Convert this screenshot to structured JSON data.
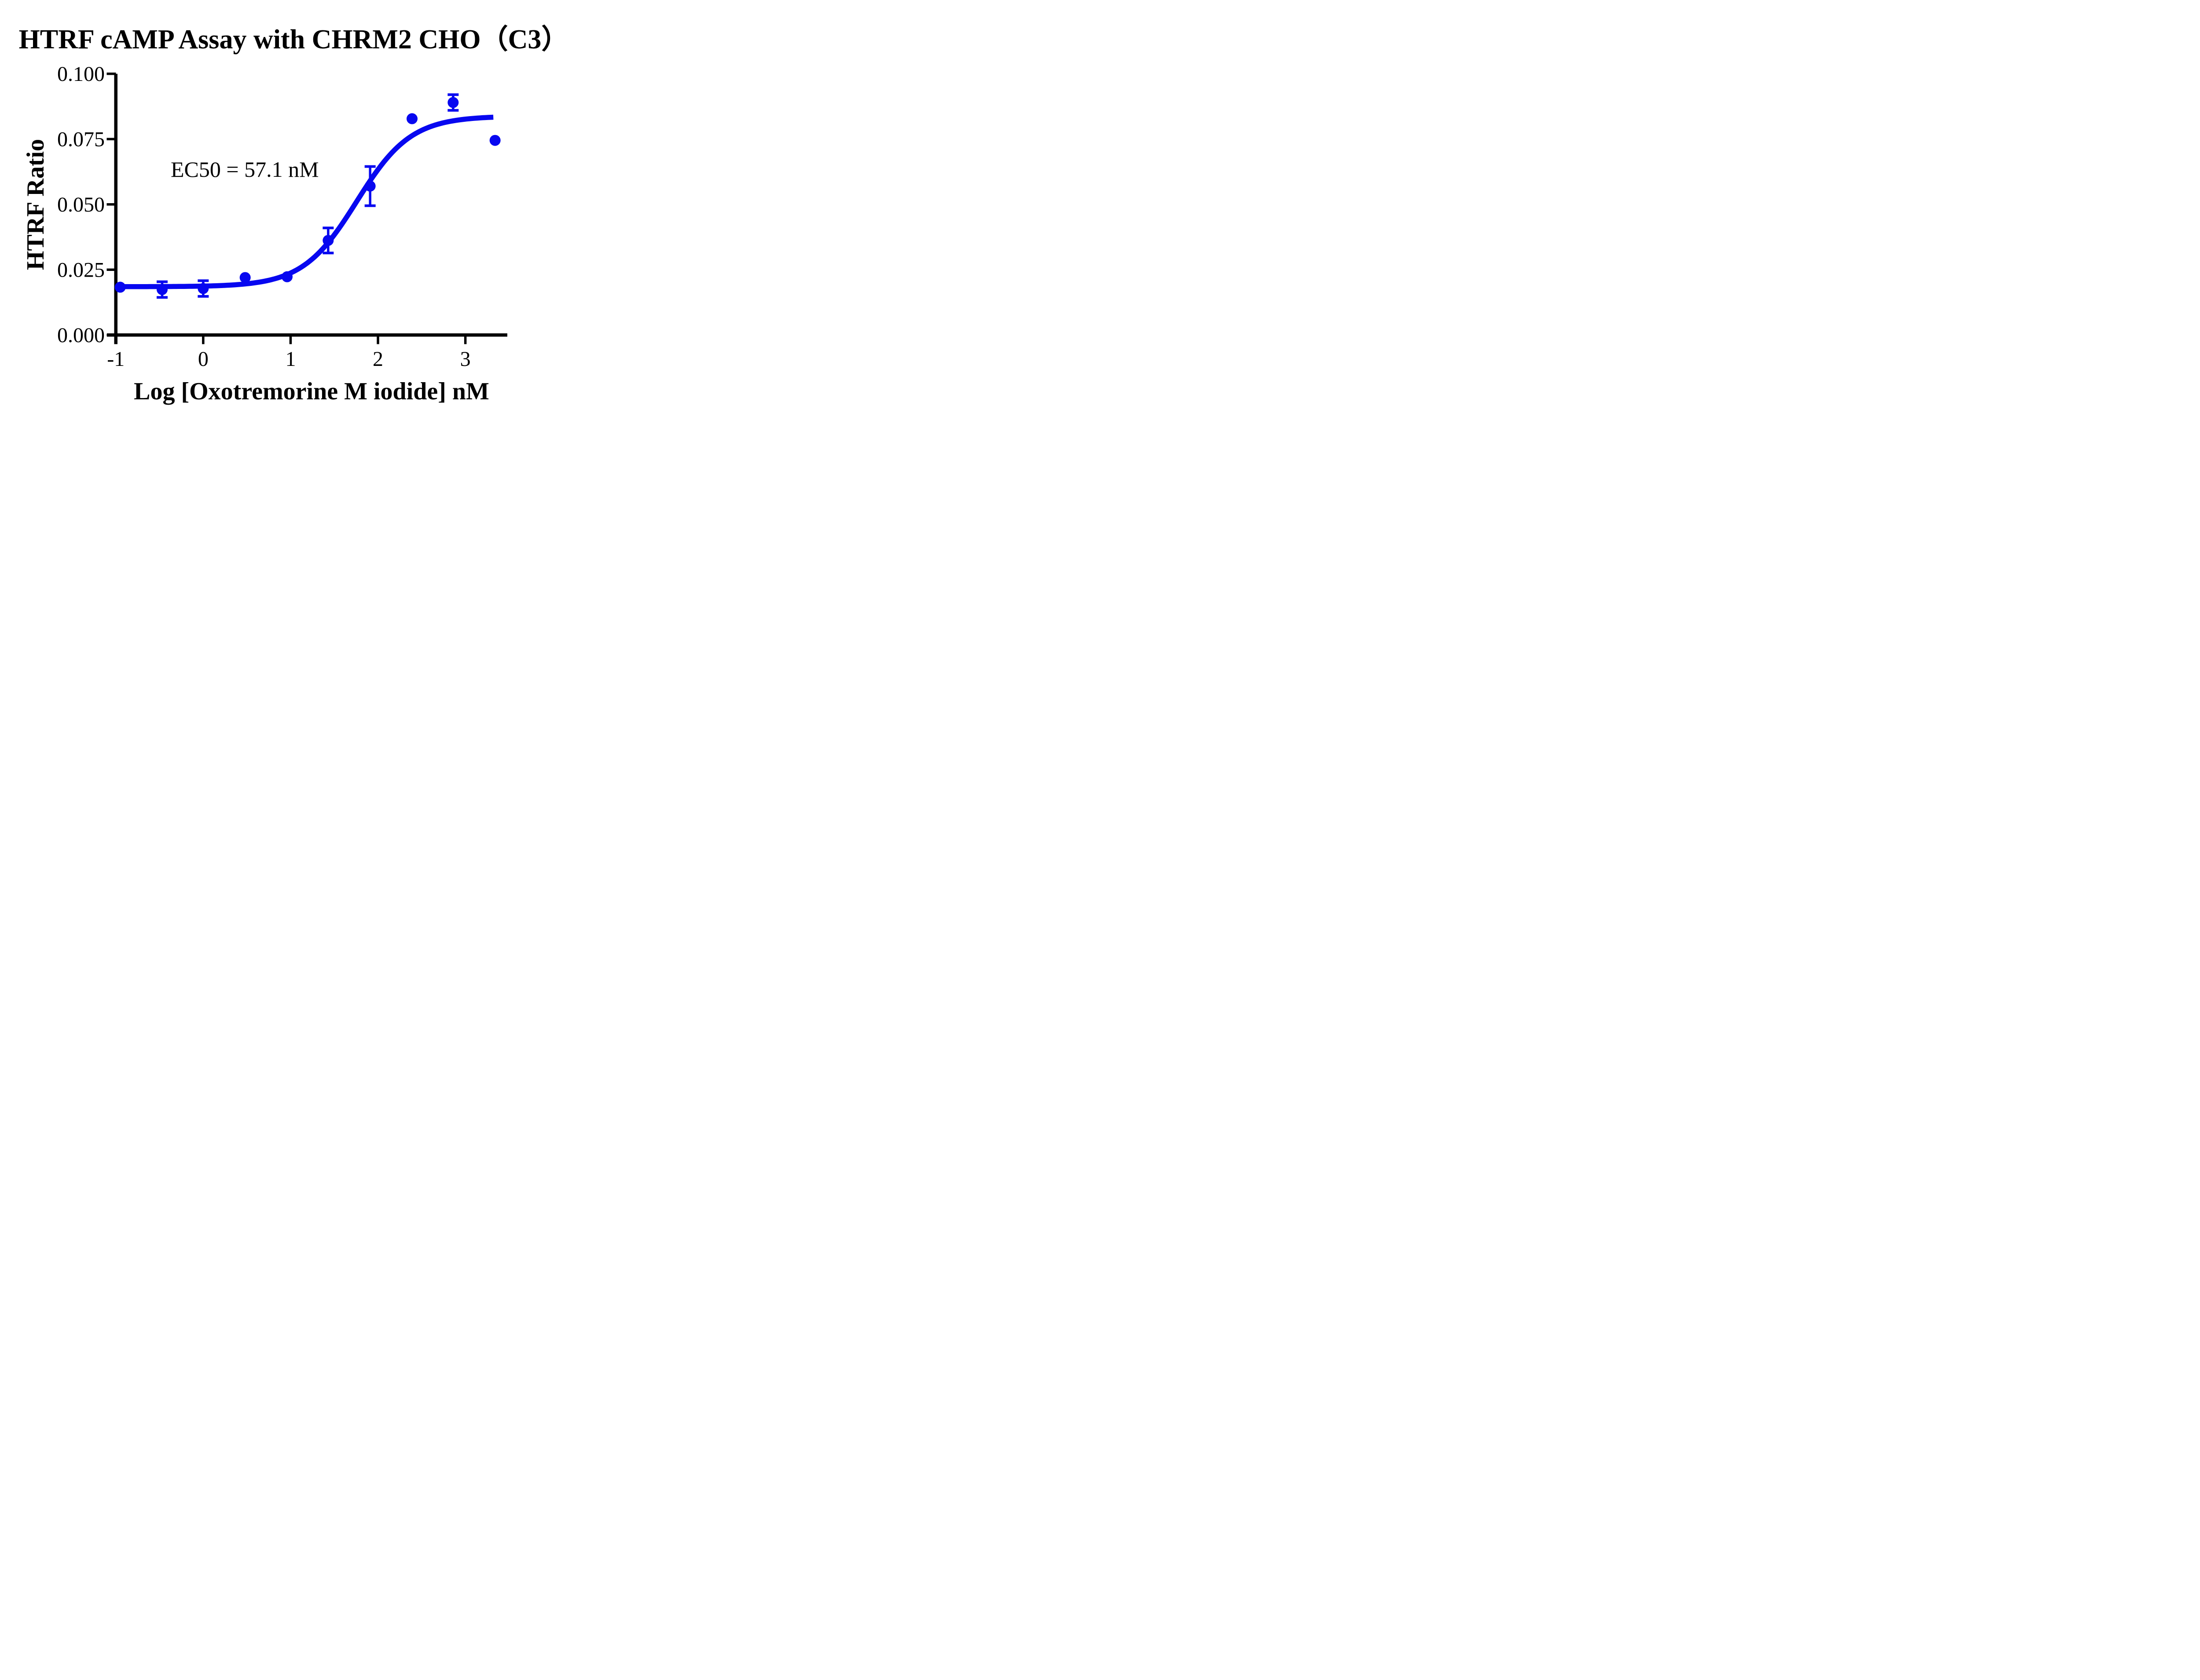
{
  "chart_data": {
    "type": "scatter",
    "title": "HTRF cAMP Assay with CHRM2 CHO（C3）",
    "xlabel": "Log [Oxotremorine M iodide] nM",
    "ylabel": "HTRF Ratio",
    "annotation": "EC50 = 57.1 nM",
    "ec50_nM": 57.1,
    "x_ticks": [
      -1,
      0,
      1,
      2,
      3
    ],
    "x_tick_labels": [
      "-1",
      "0",
      "1",
      "2",
      "3"
    ],
    "y_ticks": [
      0,
      0.025,
      0.05,
      0.075,
      0.1
    ],
    "y_tick_labels": [
      "0.000",
      "0.025",
      "0.050",
      "0.075",
      "0.100"
    ],
    "xlim": [
      -1,
      3.48
    ],
    "ylim": [
      0,
      0.1
    ],
    "grid": false,
    "legend": "none",
    "axis_color": "#000000",
    "series": [
      {
        "name": "Oxotremorine M iodide",
        "color": "#0707F0",
        "marker": "circle",
        "points": [
          {
            "x": -0.95,
            "y": 0.0183,
            "err": 0
          },
          {
            "x": -0.47,
            "y": 0.0174,
            "err": 0.003
          },
          {
            "x": 0.0,
            "y": 0.0178,
            "err": 0.003
          },
          {
            "x": 0.48,
            "y": 0.022,
            "err": 0
          },
          {
            "x": 0.96,
            "y": 0.0223,
            "err": 0
          },
          {
            "x": 1.43,
            "y": 0.0362,
            "err": 0.0048
          },
          {
            "x": 1.91,
            "y": 0.057,
            "err": 0.0075
          },
          {
            "x": 2.39,
            "y": 0.0828,
            "err": 0
          },
          {
            "x": 2.86,
            "y": 0.089,
            "err": 0.003
          },
          {
            "x": 3.34,
            "y": 0.0745,
            "err": 0
          }
        ],
        "fit": {
          "model": "4PL-sigmoid",
          "bottom": 0.0185,
          "top": 0.0838,
          "logEC50": 1.757,
          "hill": 1.4,
          "x_start": -0.95,
          "x_end": 3.32
        }
      }
    ]
  }
}
